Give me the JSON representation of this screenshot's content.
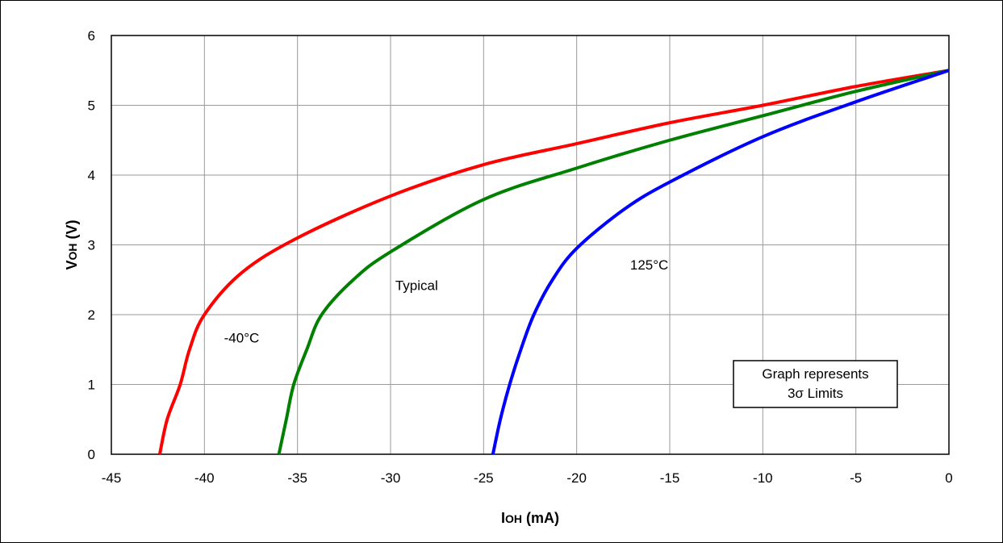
{
  "chart_data": {
    "type": "line",
    "title": "",
    "xlabel": "IOH (mA)",
    "ylabel": "VOH (V)",
    "xlim": [
      -45,
      0
    ],
    "ylim": [
      0,
      6
    ],
    "x_ticks": [
      "-45",
      "-40",
      "-35",
      "-30",
      "-25",
      "-20",
      "-15",
      "-10",
      "-5",
      "0"
    ],
    "y_ticks": [
      "0",
      "1",
      "2",
      "3",
      "4",
      "5",
      "6"
    ],
    "grid": true,
    "legend": "none",
    "series": [
      {
        "name": "-40°C",
        "color": "#ff0000",
        "points": [
          [
            -42.4,
            0
          ],
          [
            -42.0,
            0.5
          ],
          [
            -41.3,
            1.0
          ],
          [
            -40.8,
            1.5
          ],
          [
            -40.0,
            2.0
          ],
          [
            -38.0,
            2.6
          ],
          [
            -35.0,
            3.1
          ],
          [
            -30.0,
            3.7
          ],
          [
            -25.0,
            4.15
          ],
          [
            -20.0,
            4.45
          ],
          [
            -15.0,
            4.75
          ],
          [
            -10.0,
            5.0
          ],
          [
            -5.0,
            5.27
          ],
          [
            0,
            5.5
          ]
        ]
      },
      {
        "name": "Typical",
        "color": "#008000",
        "points": [
          [
            -36.0,
            0
          ],
          [
            -35.6,
            0.5
          ],
          [
            -35.2,
            1.0
          ],
          [
            -34.5,
            1.5
          ],
          [
            -33.7,
            2.0
          ],
          [
            -32.0,
            2.5
          ],
          [
            -30.0,
            2.9
          ],
          [
            -25.0,
            3.65
          ],
          [
            -20.0,
            4.1
          ],
          [
            -15.0,
            4.5
          ],
          [
            -10.0,
            4.85
          ],
          [
            -5.0,
            5.2
          ],
          [
            0,
            5.5
          ]
        ]
      },
      {
        "name": "125°C",
        "color": "#0000ff",
        "points": [
          [
            -24.5,
            0
          ],
          [
            -24.1,
            0.5
          ],
          [
            -23.6,
            1.0
          ],
          [
            -23.0,
            1.5
          ],
          [
            -22.3,
            2.0
          ],
          [
            -21.3,
            2.5
          ],
          [
            -20.0,
            2.95
          ],
          [
            -17.5,
            3.5
          ],
          [
            -15.0,
            3.9
          ],
          [
            -10.0,
            4.55
          ],
          [
            -5.0,
            5.05
          ],
          [
            0,
            5.5
          ]
        ]
      }
    ],
    "annotations": [
      {
        "text": "-40°C",
        "x": -38.0,
        "y": 1.6
      },
      {
        "text": "Typical",
        "x": -28.6,
        "y": 2.35
      },
      {
        "text": "125°C",
        "x": -16.1,
        "y": 2.65
      }
    ],
    "note": [
      "Graph represents",
      "3σ Limits"
    ]
  }
}
